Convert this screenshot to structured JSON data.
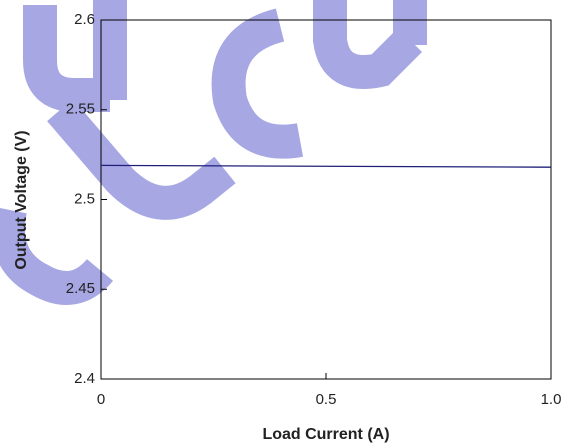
{
  "chart_data": {
    "type": "line",
    "x_label": "Load Current (A)",
    "y_label": "Output Voltage (V)",
    "x": [
      0,
      1
    ],
    "series": [
      {
        "name": "Output Voltage",
        "color": "#1f1f7a",
        "values": [
          2.519,
          2.518
        ]
      }
    ],
    "xlim": [
      0,
      1
    ],
    "xticks": [
      0,
      0.5,
      {
        "value": 1,
        "label": "1.0"
      }
    ],
    "ylim": [
      2.4,
      2.6
    ],
    "yticks": [
      2.4,
      2.45,
      2.5,
      2.55,
      2.6
    ]
  }
}
